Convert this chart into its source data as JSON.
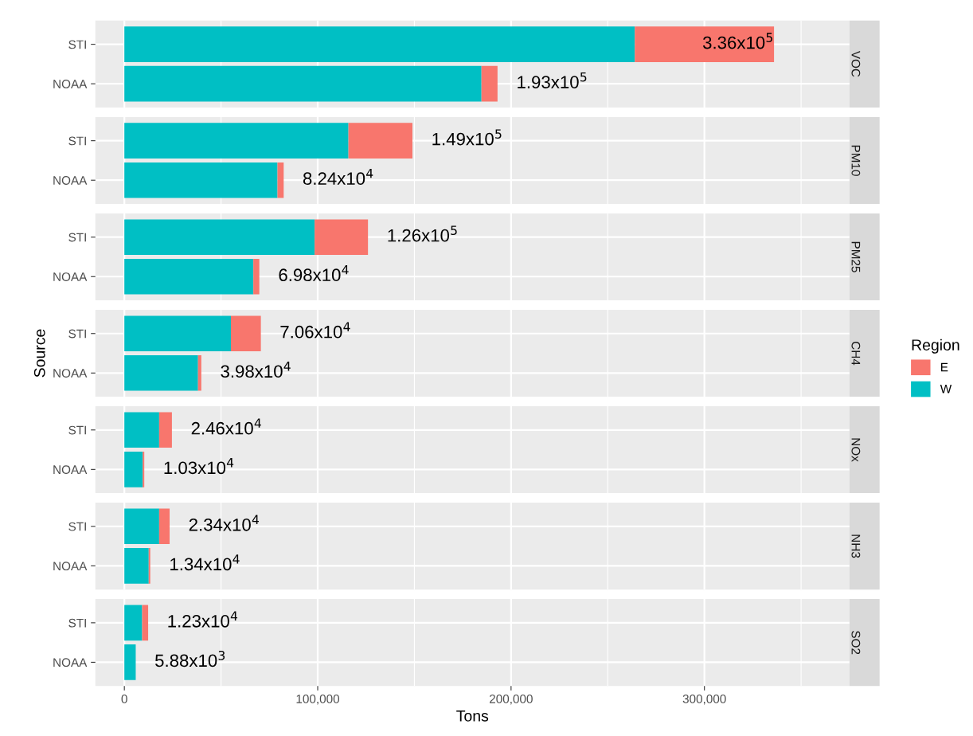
{
  "chart_data": [
    {
      "type": "bar",
      "orientation": "horizontal",
      "stacked": true,
      "title": "VOC",
      "legend": "right",
      "legend_title": "Region",
      "categories": [
        "STI",
        "NOAA"
      ],
      "xlim": [
        -15000,
        375000
      ],
      "xticks": [
        0,
        100000,
        200000,
        300000
      ],
      "tick_labels": "y",
      "grid": true,
      "series": [
        {
          "name": "W",
          "color": "#00bfc4",
          "values": [
            264000,
            184700
          ]
        },
        {
          "name": "E",
          "color": "#f8766d",
          "values": [
            72000,
            8300
          ]
        }
      ],
      "totals": [
        "3.36x10$^{5}$",
        "1.93x10$^{5}$"
      ]
    },
    {
      "type": "bar",
      "orientation": "horizontal",
      "stacked": true,
      "title": "PM10",
      "categories": [
        "STI",
        "NOAA"
      ],
      "xlim": [
        -15000,
        375000
      ],
      "xticks": [
        0,
        100000,
        200000,
        300000
      ],
      "tick_labels": "y",
      "grid": true,
      "series": [
        {
          "name": "W",
          "color": "#00bfc4",
          "values": [
            115900,
            79200
          ]
        },
        {
          "name": "E",
          "color": "#f8766d",
          "values": [
            33100,
            3200
          ]
        }
      ],
      "totals": [
        "1.49x10$^{5}$",
        "8.24x10$^{4}$"
      ]
    },
    {
      "type": "bar",
      "orientation": "horizontal",
      "stacked": true,
      "title": "PM25",
      "categories": [
        "STI",
        "NOAA"
      ],
      "xlim": [
        -15000,
        375000
      ],
      "xticks": [
        0,
        100000,
        200000,
        300000
      ],
      "tick_labels": "y",
      "grid": true,
      "series": [
        {
          "name": "W",
          "color": "#00bfc4",
          "values": [
            98400,
            66700
          ]
        },
        {
          "name": "E",
          "color": "#f8766d",
          "values": [
            27600,
            3100
          ]
        }
      ],
      "totals": [
        "1.26x10$^{5}$",
        "6.98x10$^{4}$"
      ]
    },
    {
      "type": "bar",
      "orientation": "horizontal",
      "stacked": true,
      "title": "CH4",
      "ylabel": "Source",
      "categories": [
        "STI",
        "NOAA"
      ],
      "xlim": [
        -15000,
        375000
      ],
      "xticks": [
        0,
        100000,
        200000,
        300000
      ],
      "tick_labels": "y",
      "grid": true,
      "series": [
        {
          "name": "W",
          "color": "#00bfc4",
          "values": [
            55100,
            38100
          ]
        },
        {
          "name": "E",
          "color": "#f8766d",
          "values": [
            15500,
            1700
          ]
        }
      ],
      "totals": [
        "7.06x10$^{4}$",
        "3.98x10$^{4}$"
      ]
    },
    {
      "type": "bar",
      "orientation": "horizontal",
      "stacked": true,
      "title": "NOx",
      "categories": [
        "STI",
        "NOAA"
      ],
      "xlim": [
        -15000,
        375000
      ],
      "xticks": [
        0,
        100000,
        200000,
        300000
      ],
      "tick_labels": "y",
      "grid": true,
      "series": [
        {
          "name": "W",
          "color": "#00bfc4",
          "values": [
            18000,
            9500
          ]
        },
        {
          "name": "E",
          "color": "#f8766d",
          "values": [
            6600,
            800
          ]
        }
      ],
      "totals": [
        "2.46x10$^{4}$",
        "1.03x10$^{4}$"
      ]
    },
    {
      "type": "bar",
      "orientation": "horizontal",
      "stacked": true,
      "title": "NH3",
      "categories": [
        "STI",
        "NOAA"
      ],
      "xlim": [
        -15000,
        375000
      ],
      "xticks": [
        0,
        100000,
        200000,
        300000
      ],
      "tick_labels": "y",
      "grid": true,
      "series": [
        {
          "name": "W",
          "color": "#00bfc4",
          "values": [
            18000,
            12600
          ]
        },
        {
          "name": "E",
          "color": "#f8766d",
          "values": [
            5400,
            800
          ]
        }
      ],
      "totals": [
        "2.34x10$^{4}$",
        "1.34x10$^{4}$"
      ]
    },
    {
      "type": "bar",
      "orientation": "horizontal",
      "stacked": true,
      "title": "SO2",
      "xlabel": "Tons",
      "categories": [
        "STI",
        "NOAA"
      ],
      "xlim": [
        -15000,
        375000
      ],
      "xticks": [
        {
          "value": 0,
          "label": "0"
        },
        {
          "value": 100000,
          "label": "100,000"
        },
        {
          "value": 200000,
          "label": "200,000"
        },
        {
          "value": 300000,
          "label": "300,000"
        }
      ],
      "grid": true,
      "series": [
        {
          "name": "W",
          "color": "#00bfc4",
          "values": [
            9200,
            5880
          ]
        },
        {
          "name": "E",
          "color": "#f8766d",
          "values": [
            3100,
            null
          ]
        }
      ],
      "totals": [
        "1.23x10$^{4}$",
        "5.88x10$^{3}$"
      ]
    }
  ]
}
